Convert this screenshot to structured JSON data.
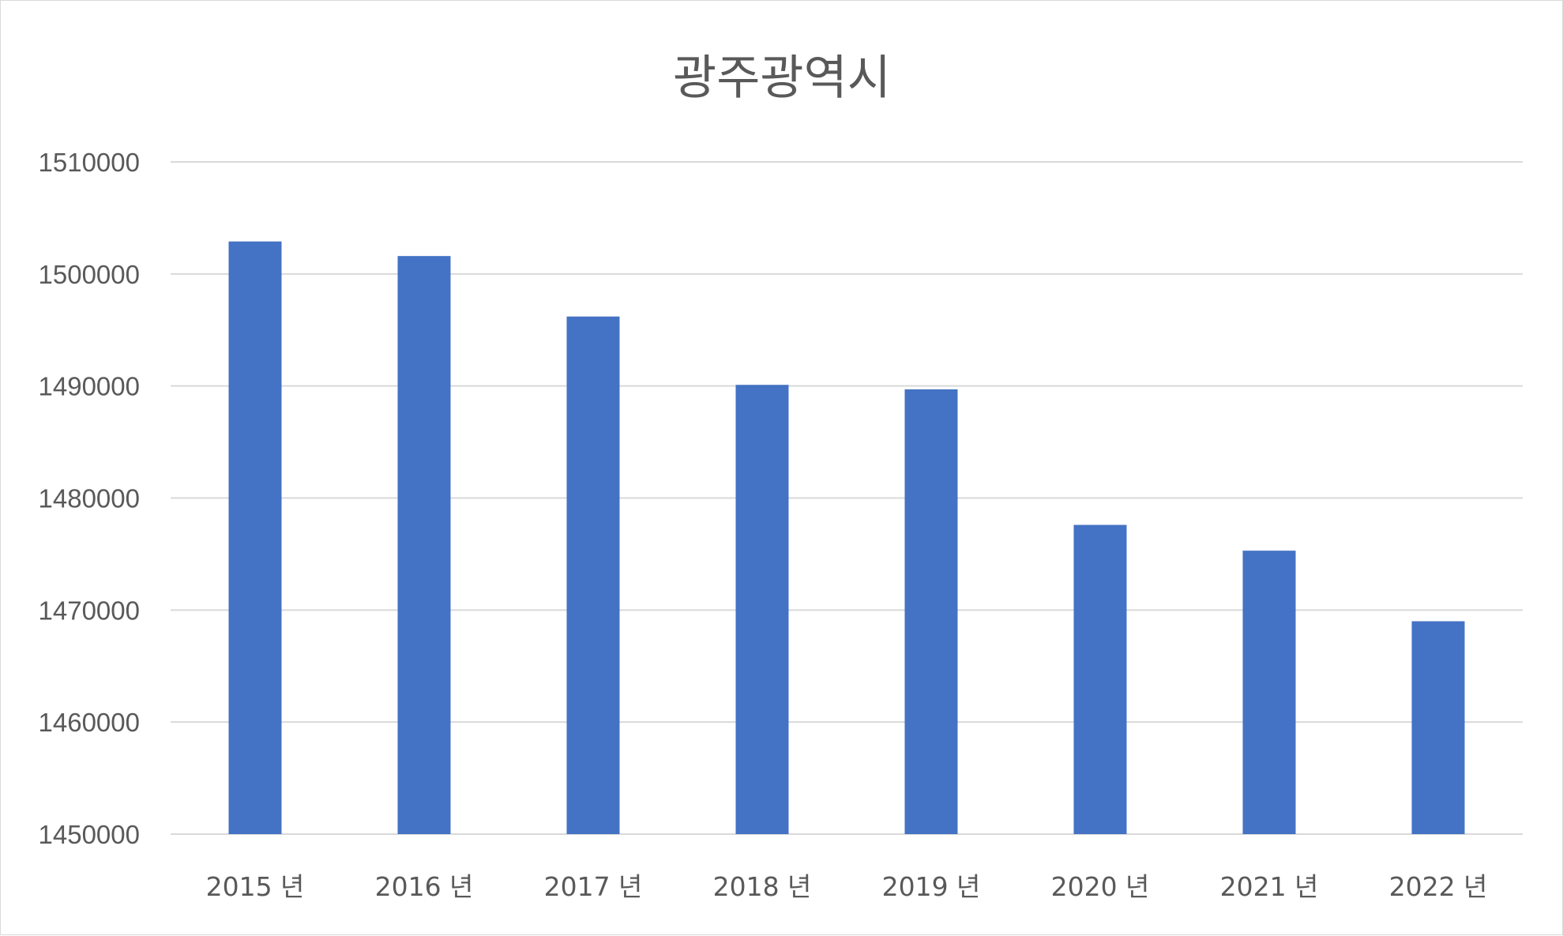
{
  "chart_data": {
    "type": "bar",
    "title": "광주광역시",
    "xlabel": "",
    "ylabel": "",
    "categories": [
      "2015 년",
      "2016 년",
      "2017 년",
      "2018 년",
      "2019 년",
      "2020 년",
      "2021 년",
      "2022 년"
    ],
    "values": [
      1502900,
      1501600,
      1496200,
      1490100,
      1489700,
      1477600,
      1475300,
      1469000
    ],
    "ylim": [
      1450000,
      1510000
    ],
    "yticks": [
      "1450000",
      "1460000",
      "1470000",
      "1480000",
      "1490000",
      "1500000",
      "1510000"
    ],
    "bar_color": "#4472C4",
    "grid": true,
    "legend": false
  }
}
